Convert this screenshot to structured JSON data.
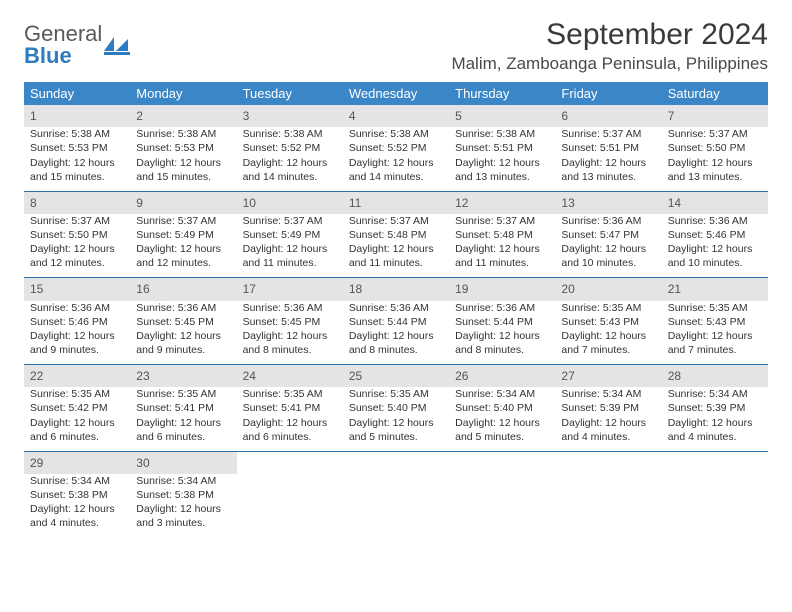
{
  "logo": {
    "word1": "General",
    "word2": "Blue"
  },
  "title": "September 2024",
  "location": "Malim, Zamboanga Peninsula, Philippines",
  "colors": {
    "header_bg": "#3b86c6",
    "header_text": "#ffffff",
    "daynum_bg": "#e4e4e4",
    "daynum_text": "#555555",
    "row_divider": "#2f6fa8",
    "body_text": "#333333",
    "logo_gray": "#5a5a5a",
    "logo_blue": "#2f7bbf",
    "page_bg": "#ffffff"
  },
  "typography": {
    "title_fontsize": 30,
    "location_fontsize": 17,
    "dayheader_fontsize": 13,
    "daynum_fontsize": 12,
    "cell_fontsize": 10.5
  },
  "day_headers": [
    "Sunday",
    "Monday",
    "Tuesday",
    "Wednesday",
    "Thursday",
    "Friday",
    "Saturday"
  ],
  "weeks": [
    {
      "nums": [
        "1",
        "2",
        "3",
        "4",
        "5",
        "6",
        "7"
      ],
      "cells": [
        [
          "Sunrise: 5:38 AM",
          "Sunset: 5:53 PM",
          "Daylight: 12 hours",
          "and 15 minutes."
        ],
        [
          "Sunrise: 5:38 AM",
          "Sunset: 5:53 PM",
          "Daylight: 12 hours",
          "and 15 minutes."
        ],
        [
          "Sunrise: 5:38 AM",
          "Sunset: 5:52 PM",
          "Daylight: 12 hours",
          "and 14 minutes."
        ],
        [
          "Sunrise: 5:38 AM",
          "Sunset: 5:52 PM",
          "Daylight: 12 hours",
          "and 14 minutes."
        ],
        [
          "Sunrise: 5:38 AM",
          "Sunset: 5:51 PM",
          "Daylight: 12 hours",
          "and 13 minutes."
        ],
        [
          "Sunrise: 5:37 AM",
          "Sunset: 5:51 PM",
          "Daylight: 12 hours",
          "and 13 minutes."
        ],
        [
          "Sunrise: 5:37 AM",
          "Sunset: 5:50 PM",
          "Daylight: 12 hours",
          "and 13 minutes."
        ]
      ]
    },
    {
      "nums": [
        "8",
        "9",
        "10",
        "11",
        "12",
        "13",
        "14"
      ],
      "cells": [
        [
          "Sunrise: 5:37 AM",
          "Sunset: 5:50 PM",
          "Daylight: 12 hours",
          "and 12 minutes."
        ],
        [
          "Sunrise: 5:37 AM",
          "Sunset: 5:49 PM",
          "Daylight: 12 hours",
          "and 12 minutes."
        ],
        [
          "Sunrise: 5:37 AM",
          "Sunset: 5:49 PM",
          "Daylight: 12 hours",
          "and 11 minutes."
        ],
        [
          "Sunrise: 5:37 AM",
          "Sunset: 5:48 PM",
          "Daylight: 12 hours",
          "and 11 minutes."
        ],
        [
          "Sunrise: 5:37 AM",
          "Sunset: 5:48 PM",
          "Daylight: 12 hours",
          "and 11 minutes."
        ],
        [
          "Sunrise: 5:36 AM",
          "Sunset: 5:47 PM",
          "Daylight: 12 hours",
          "and 10 minutes."
        ],
        [
          "Sunrise: 5:36 AM",
          "Sunset: 5:46 PM",
          "Daylight: 12 hours",
          "and 10 minutes."
        ]
      ]
    },
    {
      "nums": [
        "15",
        "16",
        "17",
        "18",
        "19",
        "20",
        "21"
      ],
      "cells": [
        [
          "Sunrise: 5:36 AM",
          "Sunset: 5:46 PM",
          "Daylight: 12 hours",
          "and 9 minutes."
        ],
        [
          "Sunrise: 5:36 AM",
          "Sunset: 5:45 PM",
          "Daylight: 12 hours",
          "and 9 minutes."
        ],
        [
          "Sunrise: 5:36 AM",
          "Sunset: 5:45 PM",
          "Daylight: 12 hours",
          "and 8 minutes."
        ],
        [
          "Sunrise: 5:36 AM",
          "Sunset: 5:44 PM",
          "Daylight: 12 hours",
          "and 8 minutes."
        ],
        [
          "Sunrise: 5:36 AM",
          "Sunset: 5:44 PM",
          "Daylight: 12 hours",
          "and 8 minutes."
        ],
        [
          "Sunrise: 5:35 AM",
          "Sunset: 5:43 PM",
          "Daylight: 12 hours",
          "and 7 minutes."
        ],
        [
          "Sunrise: 5:35 AM",
          "Sunset: 5:43 PM",
          "Daylight: 12 hours",
          "and 7 minutes."
        ]
      ]
    },
    {
      "nums": [
        "22",
        "23",
        "24",
        "25",
        "26",
        "27",
        "28"
      ],
      "cells": [
        [
          "Sunrise: 5:35 AM",
          "Sunset: 5:42 PM",
          "Daylight: 12 hours",
          "and 6 minutes."
        ],
        [
          "Sunrise: 5:35 AM",
          "Sunset: 5:41 PM",
          "Daylight: 12 hours",
          "and 6 minutes."
        ],
        [
          "Sunrise: 5:35 AM",
          "Sunset: 5:41 PM",
          "Daylight: 12 hours",
          "and 6 minutes."
        ],
        [
          "Sunrise: 5:35 AM",
          "Sunset: 5:40 PM",
          "Daylight: 12 hours",
          "and 5 minutes."
        ],
        [
          "Sunrise: 5:34 AM",
          "Sunset: 5:40 PM",
          "Daylight: 12 hours",
          "and 5 minutes."
        ],
        [
          "Sunrise: 5:34 AM",
          "Sunset: 5:39 PM",
          "Daylight: 12 hours",
          "and 4 minutes."
        ],
        [
          "Sunrise: 5:34 AM",
          "Sunset: 5:39 PM",
          "Daylight: 12 hours",
          "and 4 minutes."
        ]
      ]
    },
    {
      "nums": [
        "29",
        "30",
        "",
        "",
        "",
        "",
        ""
      ],
      "cells": [
        [
          "Sunrise: 5:34 AM",
          "Sunset: 5:38 PM",
          "Daylight: 12 hours",
          "and 4 minutes."
        ],
        [
          "Sunrise: 5:34 AM",
          "Sunset: 5:38 PM",
          "Daylight: 12 hours",
          "and 3 minutes."
        ],
        [],
        [],
        [],
        [],
        []
      ]
    }
  ]
}
